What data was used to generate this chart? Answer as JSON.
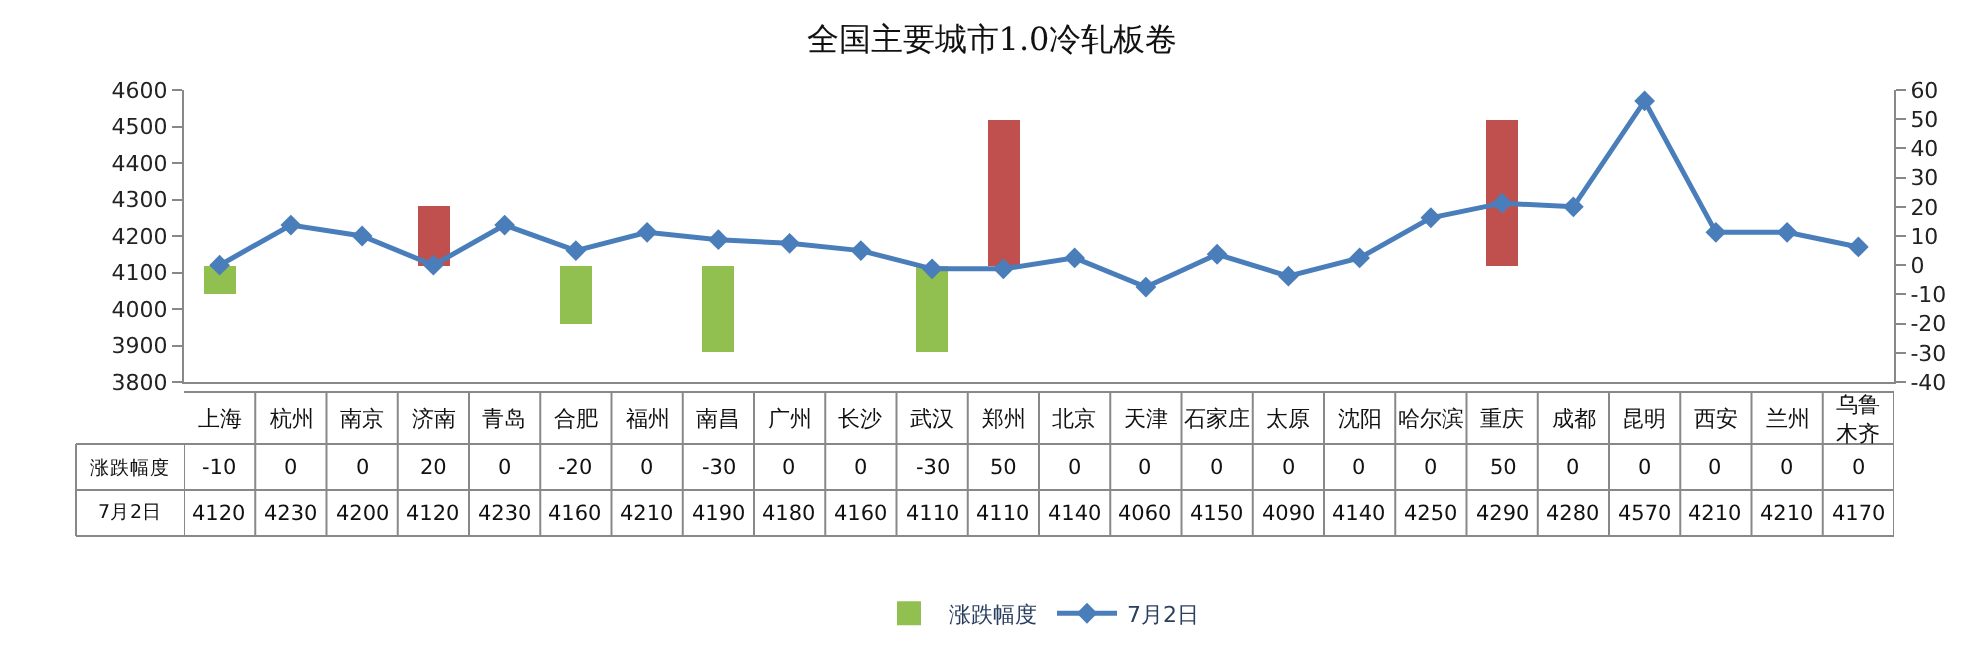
{
  "chart_data": {
    "type": "bar",
    "title": "全国主要城市1.0冷轧板卷",
    "categories": [
      "上海",
      "杭州",
      "南京",
      "济南",
      "青岛",
      "合肥",
      "福州",
      "南昌",
      "广州",
      "长沙",
      "武汉",
      "郑州",
      "北京",
      "天津",
      "石家庄",
      "太原",
      "沈阳",
      "哈尔滨",
      "重庆",
      "成都",
      "昆明",
      "西安",
      "兰州",
      "乌鲁木齐"
    ],
    "series": [
      {
        "name": "涨跌幅度",
        "axis": "y2",
        "values": [
          -10,
          0,
          0,
          20,
          0,
          -20,
          0,
          -30,
          0,
          0,
          -30,
          50,
          0,
          0,
          0,
          0,
          0,
          0,
          50,
          0,
          0,
          0,
          0,
          0
        ],
        "colors": [
          "#92c050",
          "#92c050",
          "#92c050",
          "#c0504d",
          "#92c050",
          "#92c050",
          "#92c050",
          "#92c050",
          "#92c050",
          "#92c050",
          "#92c050",
          "#c0504d",
          "#92c050",
          "#92c050",
          "#92c050",
          "#92c050",
          "#92c050",
          "#92c050",
          "#c0504d",
          "#92c050",
          "#92c050",
          "#92c050",
          "#92c050",
          "#92c050"
        ],
        "color": "#92c050"
      },
      {
        "name": "7月2日",
        "type": "line",
        "color": "#4a7ebb",
        "marker": "diamond",
        "line_style": "solid",
        "values": [
          4120,
          4230,
          4200,
          4120,
          4230,
          4160,
          4210,
          4190,
          4180,
          4160,
          4110,
          4110,
          4140,
          4060,
          4150,
          4090,
          4140,
          4250,
          4290,
          4280,
          4570,
          4210,
          4210,
          4170
        ]
      }
    ],
    "ylim": [
      3800,
      4600
    ],
    "yticks": [
      3800,
      3900,
      4000,
      4100,
      4200,
      4300,
      4400,
      4500,
      4600
    ],
    "y2lim": [
      -40,
      60
    ],
    "y2ticks": [
      -40,
      -30,
      -20,
      -10,
      0,
      10,
      20,
      30,
      40,
      50,
      60
    ],
    "legend": "bottom",
    "data_labels": true
  }
}
